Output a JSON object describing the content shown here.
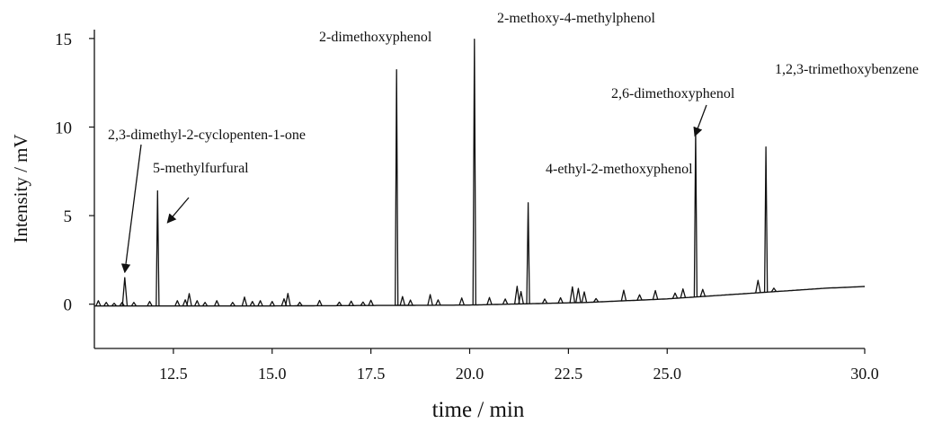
{
  "chart_data": {
    "type": "line",
    "xlabel": "time / min",
    "ylabel": "Intensity / mV",
    "xlim": [
      10.5,
      30.0
    ],
    "ylim": [
      -2.5,
      15.5
    ],
    "x_ticks": [
      12.5,
      15.0,
      17.5,
      20.0,
      22.5,
      25.0,
      30.0
    ],
    "x_tick_labels": [
      "12.5",
      "15.0",
      "17.5",
      "20.0",
      "22.5",
      "25.0",
      "30.0"
    ],
    "y_ticks": [
      0,
      5,
      10,
      15
    ],
    "y_tick_labels": [
      "0",
      "5",
      "10",
      "15"
    ],
    "grid": false,
    "legend": "none",
    "baseline": [
      [
        10.5,
        -0.1
      ],
      [
        15.0,
        -0.1
      ],
      [
        20.0,
        -0.05
      ],
      [
        23.0,
        0.1
      ],
      [
        25.0,
        0.3
      ],
      [
        27.0,
        0.6
      ],
      [
        29.0,
        0.9
      ],
      [
        30.0,
        1.0
      ]
    ],
    "peaks": [
      {
        "x": 10.6,
        "height": 0.3
      },
      {
        "x": 10.8,
        "height": 0.2
      },
      {
        "x": 11.0,
        "height": 0.15
      },
      {
        "x": 11.2,
        "height": 0.2
      },
      {
        "x": 11.27,
        "height": 1.6
      },
      {
        "x": 11.5,
        "height": 0.2
      },
      {
        "x": 11.9,
        "height": 0.25
      },
      {
        "x": 12.1,
        "height": 6.5
      },
      {
        "x": 12.6,
        "height": 0.3
      },
      {
        "x": 12.8,
        "height": 0.35
      },
      {
        "x": 12.9,
        "height": 0.7
      },
      {
        "x": 13.1,
        "height": 0.3
      },
      {
        "x": 13.3,
        "height": 0.2
      },
      {
        "x": 13.6,
        "height": 0.3
      },
      {
        "x": 14.0,
        "height": 0.2
      },
      {
        "x": 14.3,
        "height": 0.5
      },
      {
        "x": 14.5,
        "height": 0.25
      },
      {
        "x": 14.7,
        "height": 0.3
      },
      {
        "x": 15.0,
        "height": 0.25
      },
      {
        "x": 15.3,
        "height": 0.4
      },
      {
        "x": 15.4,
        "height": 0.7
      },
      {
        "x": 15.7,
        "height": 0.2
      },
      {
        "x": 16.2,
        "height": 0.3
      },
      {
        "x": 16.7,
        "height": 0.2
      },
      {
        "x": 17.0,
        "height": 0.25
      },
      {
        "x": 17.3,
        "height": 0.2
      },
      {
        "x": 17.5,
        "height": 0.3
      },
      {
        "x": 18.15,
        "height": 13.3
      },
      {
        "x": 18.3,
        "height": 0.5
      },
      {
        "x": 18.5,
        "height": 0.3
      },
      {
        "x": 19.0,
        "height": 0.6
      },
      {
        "x": 19.2,
        "height": 0.3
      },
      {
        "x": 19.8,
        "height": 0.4
      },
      {
        "x": 20.12,
        "height": 15.0
      },
      {
        "x": 20.5,
        "height": 0.4
      },
      {
        "x": 20.9,
        "height": 0.3
      },
      {
        "x": 21.2,
        "height": 1.0
      },
      {
        "x": 21.3,
        "height": 0.7
      },
      {
        "x": 21.48,
        "height": 5.7
      },
      {
        "x": 21.9,
        "height": 0.25
      },
      {
        "x": 22.3,
        "height": 0.3
      },
      {
        "x": 22.6,
        "height": 0.9
      },
      {
        "x": 22.75,
        "height": 0.8
      },
      {
        "x": 22.9,
        "height": 0.6
      },
      {
        "x": 23.2,
        "height": 0.2
      },
      {
        "x": 23.9,
        "height": 0.6
      },
      {
        "x": 24.3,
        "height": 0.3
      },
      {
        "x": 24.7,
        "height": 0.5
      },
      {
        "x": 25.2,
        "height": 0.3
      },
      {
        "x": 25.4,
        "height": 0.5
      },
      {
        "x": 25.72,
        "height": 9.4
      },
      {
        "x": 25.9,
        "height": 0.4
      },
      {
        "x": 27.3,
        "height": 0.7
      },
      {
        "x": 27.5,
        "height": 8.2
      },
      {
        "x": 27.7,
        "height": 0.2
      }
    ],
    "annotations": [
      {
        "text": "2,3-dimethyl-2-cyclopenten-1-one",
        "target": [
          11.27,
          1.8
        ]
      },
      {
        "text": "5-methylfurfural",
        "target": [
          12.35,
          4.6
        ]
      },
      {
        "text": "2-dimethoxyphenol"
      },
      {
        "text": "2-methoxy-4-methylphenol"
      },
      {
        "text": "4-ethyl-2-methoxyphenol"
      },
      {
        "text": "2,6-dimethoxyphenol",
        "target": [
          25.7,
          9.5
        ]
      },
      {
        "text": "1,2,3-trimethoxybenzene"
      }
    ]
  }
}
